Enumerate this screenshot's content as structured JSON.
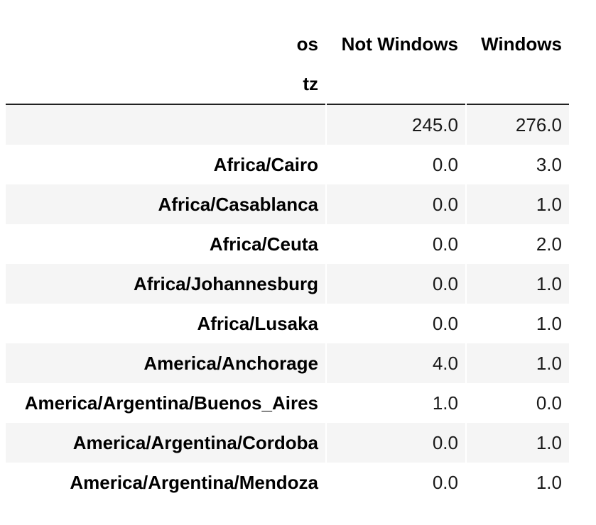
{
  "chart_data": {
    "type": "table",
    "title": "",
    "columns_axis_name": "os",
    "index_axis_name": "tz",
    "columns": [
      "Not Windows",
      "Windows"
    ],
    "index": [
      "",
      "Africa/Cairo",
      "Africa/Casablanca",
      "Africa/Ceuta",
      "Africa/Johannesburg",
      "Africa/Lusaka",
      "America/Anchorage",
      "America/Argentina/Buenos_Aires",
      "America/Argentina/Cordoba",
      "America/Argentina/Mendoza"
    ],
    "values": [
      [
        245.0,
        276.0
      ],
      [
        0.0,
        3.0
      ],
      [
        0.0,
        1.0
      ],
      [
        0.0,
        2.0
      ],
      [
        0.0,
        1.0
      ],
      [
        0.0,
        1.0
      ],
      [
        4.0,
        1.0
      ],
      [
        1.0,
        0.0
      ],
      [
        0.0,
        1.0
      ],
      [
        0.0,
        1.0
      ]
    ],
    "layout_hints": {
      "striped_rows": true,
      "stripe_color": "#f5f5f5",
      "header_rule_color": "#212121",
      "value_alignment": "right"
    }
  },
  "table": {
    "corner_label": "os",
    "index_label": "tz",
    "column_headers": [
      "Not Windows",
      "Windows"
    ],
    "rows": [
      {
        "tz": "",
        "not_windows": "245.0",
        "windows": "276.0"
      },
      {
        "tz": "Africa/Cairo",
        "not_windows": "0.0",
        "windows": "3.0"
      },
      {
        "tz": "Africa/Casablanca",
        "not_windows": "0.0",
        "windows": "1.0"
      },
      {
        "tz": "Africa/Ceuta",
        "not_windows": "0.0",
        "windows": "2.0"
      },
      {
        "tz": "Africa/Johannesburg",
        "not_windows": "0.0",
        "windows": "1.0"
      },
      {
        "tz": "Africa/Lusaka",
        "not_windows": "0.0",
        "windows": "1.0"
      },
      {
        "tz": "America/Anchorage",
        "not_windows": "4.0",
        "windows": "1.0"
      },
      {
        "tz": "America/Argentina/Buenos_Aires",
        "not_windows": "1.0",
        "windows": "0.0"
      },
      {
        "tz": "America/Argentina/Cordoba",
        "not_windows": "0.0",
        "windows": "1.0"
      },
      {
        "tz": "America/Argentina/Mendoza",
        "not_windows": "0.0",
        "windows": "1.0"
      }
    ],
    "empty_cell": ""
  },
  "colors": {
    "background": "#ffffff",
    "row_stripe": "#f5f5f5",
    "header_border": "#212121",
    "header_text": "#000000",
    "cell_text": "#1a1a1a"
  }
}
